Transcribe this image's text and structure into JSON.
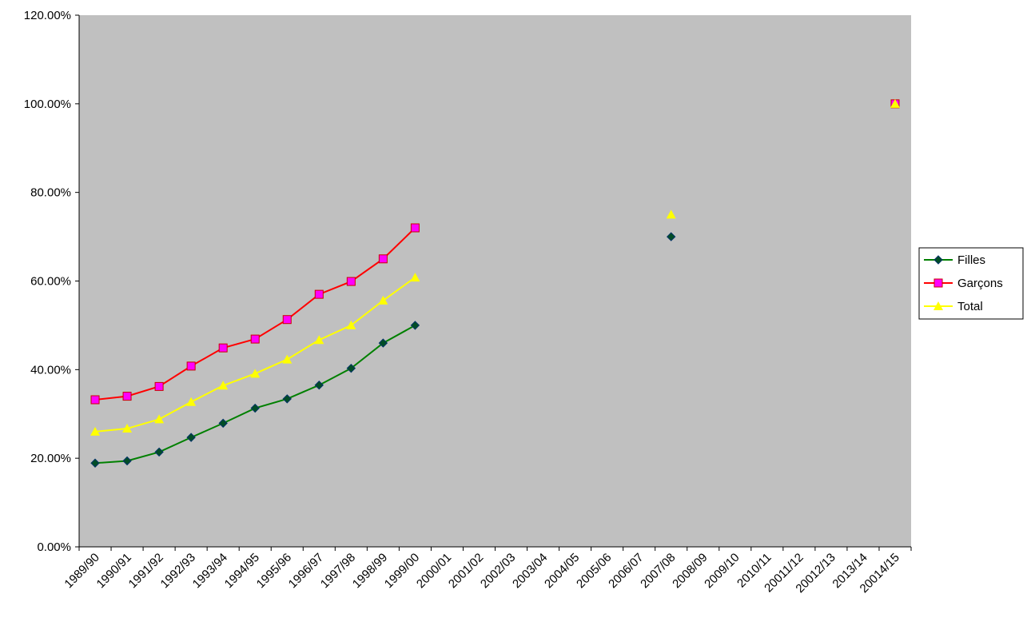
{
  "chart_data": {
    "type": "line",
    "categories": [
      "1989/90",
      "1990/91",
      "1991/92",
      "1992/93",
      "1993/94",
      "1994/95",
      "1995/96",
      "1996/97",
      "1997/98",
      "1998/99",
      "1999/00",
      "2000/01",
      "2001/02",
      "2002/03",
      "2003/04",
      "2004/05",
      "2005/06",
      "2006/07",
      "2007/08",
      "2008/09",
      "2009/10",
      "2010/11",
      "20011/12",
      "20012/13",
      "2013/14",
      "20014/15"
    ],
    "series": [
      {
        "name": "Filles",
        "color": "#008000",
        "marker": "diamond",
        "marker_color": "#004d26",
        "values": [
          18.9,
          19.4,
          21.4,
          24.7,
          27.9,
          31.3,
          33.4,
          36.5,
          40.3,
          46,
          50,
          null,
          null,
          null,
          null,
          null,
          null,
          null,
          70,
          null,
          null,
          null,
          null,
          null,
          null,
          null
        ]
      },
      {
        "name": "Garçons",
        "color": "#ff0000",
        "marker": "square",
        "marker_color": "#ff00ff",
        "values": [
          33.2,
          34,
          36.2,
          40.8,
          44.9,
          46.9,
          51.3,
          57,
          59.9,
          65,
          72,
          null,
          null,
          null,
          null,
          null,
          null,
          null,
          null,
          null,
          null,
          null,
          null,
          null,
          null,
          100
        ]
      },
      {
        "name": "Total",
        "color": "#ffff00",
        "marker": "triangle",
        "marker_color": "#ffff00",
        "values": [
          26,
          26.7,
          28.8,
          32.7,
          36.4,
          39.1,
          42.3,
          46.7,
          50,
          55.6,
          60.8,
          null,
          null,
          null,
          null,
          null,
          null,
          null,
          75,
          null,
          null,
          null,
          null,
          null,
          null,
          100
        ]
      }
    ],
    "ylim": [
      0,
      120
    ],
    "yticks": [
      {
        "value": 0,
        "label": "0.00%"
      },
      {
        "value": 20,
        "label": "20.00%"
      },
      {
        "value": 40,
        "label": "40.00%"
      },
      {
        "value": 60,
        "label": "60.00%"
      },
      {
        "value": 80,
        "label": "80.00%"
      },
      {
        "value": 100,
        "label": "100.00%"
      },
      {
        "value": 120,
        "label": "120.00%"
      }
    ],
    "legend": "right",
    "plot_background": "#c0c0c0"
  }
}
